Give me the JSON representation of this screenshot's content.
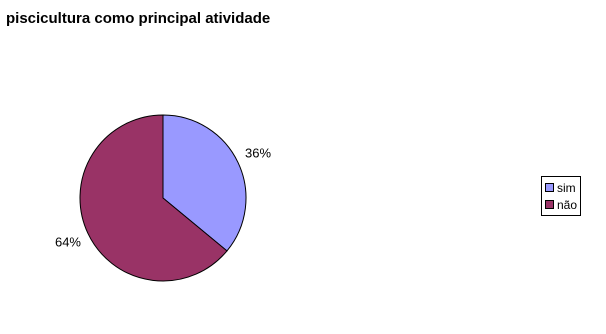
{
  "chart_data": {
    "type": "pie",
    "title": "piscicultura como principal atividade",
    "slices": [
      {
        "label": "sim",
        "value": 36,
        "data_label": "36%",
        "color": "#9999ff"
      },
      {
        "label": "não",
        "value": 64,
        "data_label": "64%",
        "color": "#993366"
      }
    ],
    "legend_position": "right"
  }
}
